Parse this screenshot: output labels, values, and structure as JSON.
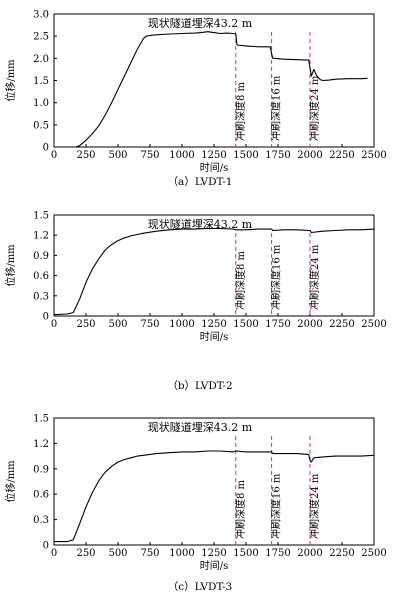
{
  "chart_data": [
    {
      "type": "line",
      "caption": "（a）LVDT-1",
      "title": "现状隧道埋深43.2 m",
      "xlabel": "时间/s",
      "ylabel": "位移/mm",
      "xlim": [
        0,
        2500
      ],
      "ylim": [
        0,
        3.0
      ],
      "xticks": [
        0,
        250,
        500,
        750,
        1000,
        1250,
        1500,
        1750,
        2000,
        2250,
        2500
      ],
      "yticks": [
        "0",
        "0.5",
        "1.0",
        "1.5",
        "2.0",
        "2.5",
        "3.0"
      ],
      "markers": [
        {
          "x": 1420,
          "label": "冲刷深度8 m"
        },
        {
          "x": 1700,
          "label": "冲刷深度16 m"
        },
        {
          "x": 2000,
          "label": "冲刷深度24 m"
        }
      ],
      "series": [
        {
          "x": [
            170,
            200,
            250,
            300,
            350,
            400,
            450,
            500,
            550,
            600,
            650,
            700,
            720,
            760,
            800,
            900,
            1000,
            1100,
            1150,
            1200,
            1250,
            1300,
            1350,
            1400,
            1420,
            1430,
            1500,
            1550,
            1600,
            1690,
            1700,
            1710,
            1800,
            1900,
            1990,
            2000,
            2010,
            2030,
            2050,
            2080,
            2100,
            2150,
            2200,
            2300,
            2400,
            2450
          ],
          "y": [
            0.0,
            0.03,
            0.15,
            0.3,
            0.48,
            0.72,
            1.0,
            1.3,
            1.6,
            1.9,
            2.2,
            2.45,
            2.5,
            2.52,
            2.53,
            2.55,
            2.56,
            2.57,
            2.58,
            2.6,
            2.58,
            2.56,
            2.57,
            2.56,
            2.55,
            2.3,
            2.28,
            2.27,
            2.26,
            2.26,
            2.1,
            2.0,
            1.98,
            1.97,
            1.96,
            1.8,
            1.6,
            1.75,
            1.62,
            1.52,
            1.5,
            1.51,
            1.53,
            1.54,
            1.54,
            1.55
          ]
        }
      ]
    },
    {
      "type": "line",
      "caption": "（b）LVDT-2",
      "title": "现状隧道埋深43.2 m",
      "xlabel": "时间/s",
      "ylabel": "位移/mm",
      "xlim": [
        0,
        2500
      ],
      "ylim": [
        0,
        1.5
      ],
      "xticks": [
        0,
        250,
        500,
        750,
        1000,
        1250,
        1500,
        1750,
        2000,
        2250,
        2500
      ],
      "yticks": [
        "0",
        "0.3",
        "0.6",
        "0.9",
        "1.2",
        "1.5"
      ],
      "markers": [
        {
          "x": 1420,
          "label": "冲刷深度8 m"
        },
        {
          "x": 1700,
          "label": "冲刷深度16 m"
        },
        {
          "x": 2000,
          "label": "冲刷深度24 m"
        }
      ],
      "series": [
        {
          "x": [
            0,
            100,
            150,
            200,
            250,
            300,
            350,
            400,
            450,
            500,
            550,
            600,
            650,
            700,
            800,
            900,
            1000,
            1100,
            1200,
            1300,
            1400,
            1420,
            1500,
            1600,
            1700,
            1710,
            1800,
            1900,
            2000,
            2010,
            2100,
            2200,
            2300,
            2400,
            2500
          ],
          "y": [
            0.02,
            0.03,
            0.05,
            0.25,
            0.5,
            0.7,
            0.85,
            0.98,
            1.06,
            1.12,
            1.16,
            1.19,
            1.21,
            1.23,
            1.26,
            1.28,
            1.29,
            1.29,
            1.3,
            1.3,
            1.29,
            1.28,
            1.28,
            1.29,
            1.29,
            1.27,
            1.28,
            1.28,
            1.27,
            1.24,
            1.26,
            1.27,
            1.28,
            1.28,
            1.29
          ]
        }
      ]
    },
    {
      "type": "line",
      "caption": "（c）LVDT-3",
      "title": "现状隧道埋深43.2 m",
      "xlabel": "时间/s",
      "ylabel": "位移/mm",
      "xlim": [
        0,
        2500
      ],
      "ylim": [
        0,
        1.5
      ],
      "xticks": [
        0,
        250,
        500,
        750,
        1000,
        1250,
        1500,
        1750,
        2000,
        2250,
        2500
      ],
      "yticks": [
        "0",
        "0.3",
        "0.6",
        "0.9",
        "1.2",
        "1.5"
      ],
      "markers": [
        {
          "x": 1420,
          "label": "冲刷深度8 m"
        },
        {
          "x": 1700,
          "label": "冲刷深度16 m"
        },
        {
          "x": 2000,
          "label": "冲刷深度24 m"
        }
      ],
      "series": [
        {
          "x": [
            0,
            100,
            150,
            200,
            250,
            300,
            350,
            400,
            450,
            500,
            550,
            600,
            650,
            700,
            750,
            800,
            900,
            1000,
            1100,
            1200,
            1300,
            1400,
            1420,
            1500,
            1600,
            1700,
            1710,
            1800,
            1900,
            1990,
            2000,
            2010,
            2030,
            2100,
            2200,
            2300,
            2400,
            2500
          ],
          "y": [
            0.04,
            0.04,
            0.06,
            0.25,
            0.45,
            0.62,
            0.76,
            0.86,
            0.93,
            0.98,
            1.01,
            1.03,
            1.05,
            1.06,
            1.07,
            1.08,
            1.09,
            1.1,
            1.1,
            1.11,
            1.11,
            1.1,
            1.11,
            1.1,
            1.1,
            1.1,
            1.08,
            1.08,
            1.08,
            1.07,
            1.0,
            0.98,
            1.03,
            1.04,
            1.05,
            1.05,
            1.05,
            1.06
          ]
        }
      ]
    }
  ]
}
